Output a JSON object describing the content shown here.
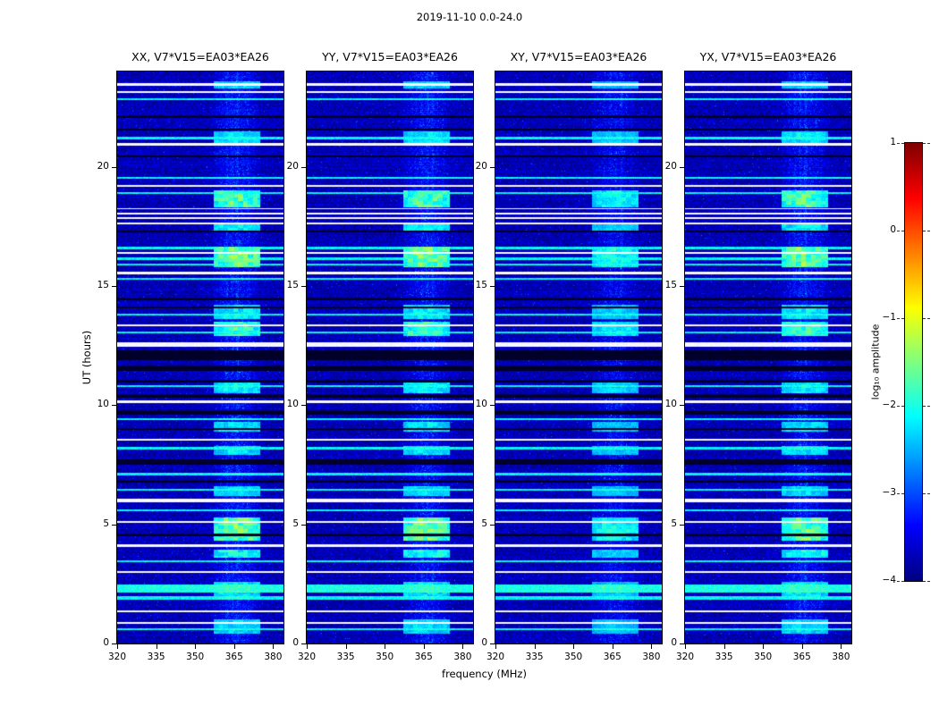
{
  "title": "2019-11-10 0.0-24.0",
  "chart_data": {
    "type": "heatmap",
    "title": "2019-11-10 0.0-24.0",
    "colormap": "jet",
    "panels": [
      {
        "label": "XX, V7*V15=EA03*EA26",
        "pol": "XX",
        "band_gain": 1.0,
        "patch_gain": 1.0
      },
      {
        "label": "YY, V7*V15=EA03*EA26",
        "pol": "YY",
        "band_gain": 1.0,
        "patch_gain": 1.0
      },
      {
        "label": "XY, V7*V15=EA03*EA26",
        "pol": "XY",
        "band_gain": 0.75,
        "patch_gain": 0.6
      },
      {
        "label": "YX, V7*V15=EA03*EA26",
        "pol": "YX",
        "band_gain": 0.9,
        "patch_gain": 0.95
      }
    ],
    "x": {
      "label": "frequency (MHz)",
      "min": 320,
      "max": 384,
      "ticks": [
        320,
        335,
        350,
        365,
        380
      ]
    },
    "y": {
      "label": "UT (hours)",
      "min": 0,
      "max": 24,
      "ticks": [
        0,
        5,
        10,
        15,
        20
      ]
    },
    "colorbar": {
      "label": "log₁₀ amplitude",
      "min": -4,
      "max": 1,
      "ticks": [
        1,
        0,
        -1,
        -2,
        -3,
        -4
      ]
    },
    "rfi_band": {
      "f0": 357,
      "f1": 375,
      "center": 366,
      "width": 8
    },
    "row_features": [
      {
        "ut": 23.45,
        "type": "white",
        "w": 0.1
      },
      {
        "ut": 23.15,
        "type": "white",
        "w": 0.08
      },
      {
        "ut": 22.85,
        "type": "cyan",
        "w": 0.08
      },
      {
        "ut": 22.1,
        "type": "black",
        "w": 0.12
      },
      {
        "ut": 21.55,
        "type": "black",
        "w": 0.08
      },
      {
        "ut": 21.2,
        "type": "cyan",
        "w": 0.12
      },
      {
        "ut": 20.95,
        "type": "white",
        "w": 0.1
      },
      {
        "ut": 20.45,
        "type": "black",
        "w": 0.08
      },
      {
        "ut": 19.55,
        "type": "cyan",
        "w": 0.08
      },
      {
        "ut": 19.2,
        "type": "white",
        "w": 0.1
      },
      {
        "ut": 18.9,
        "type": "cyan",
        "w": 0.1
      },
      {
        "ut": 18.25,
        "type": "white",
        "w": 0.06
      },
      {
        "ut": 18.05,
        "type": "white",
        "w": 0.08
      },
      {
        "ut": 17.85,
        "type": "white",
        "w": 0.08
      },
      {
        "ut": 17.62,
        "type": "white",
        "w": 0.1
      },
      {
        "ut": 17.3,
        "type": "black",
        "w": 0.08
      },
      {
        "ut": 16.6,
        "type": "cyan",
        "w": 0.1
      },
      {
        "ut": 16.38,
        "type": "white",
        "w": 0.06
      },
      {
        "ut": 16.15,
        "type": "cyan",
        "w": 0.12
      },
      {
        "ut": 15.9,
        "type": "cyan",
        "w": 0.1
      },
      {
        "ut": 15.55,
        "type": "white",
        "w": 0.12
      },
      {
        "ut": 15.3,
        "type": "cyan",
        "w": 0.08
      },
      {
        "ut": 14.45,
        "type": "black",
        "w": 0.1
      },
      {
        "ut": 14.1,
        "type": "black",
        "w": 0.08
      },
      {
        "ut": 13.8,
        "type": "cyan",
        "w": 0.1
      },
      {
        "ut": 13.35,
        "type": "white",
        "w": 0.08
      },
      {
        "ut": 13.05,
        "type": "cyan",
        "w": 0.08
      },
      {
        "ut": 12.55,
        "type": "white",
        "w": 0.2
      },
      {
        "ut": 12.1,
        "type": "black",
        "w": 0.4
      },
      {
        "ut": 11.55,
        "type": "black",
        "w": 0.25
      },
      {
        "ut": 11.0,
        "type": "black",
        "w": 0.12
      },
      {
        "ut": 10.8,
        "type": "cyan",
        "w": 0.1
      },
      {
        "ut": 10.4,
        "type": "black",
        "w": 0.15
      },
      {
        "ut": 10.15,
        "type": "white",
        "w": 0.1
      },
      {
        "ut": 9.7,
        "type": "black",
        "w": 0.2
      },
      {
        "ut": 9.4,
        "type": "cyan",
        "w": 0.08
      },
      {
        "ut": 9.0,
        "type": "black",
        "w": 0.1
      },
      {
        "ut": 8.55,
        "type": "white",
        "w": 0.1
      },
      {
        "ut": 8.2,
        "type": "cyan",
        "w": 0.1
      },
      {
        "ut": 7.6,
        "type": "black",
        "w": 0.22
      },
      {
        "ut": 7.1,
        "type": "cyan",
        "w": 0.12
      },
      {
        "ut": 6.8,
        "type": "black",
        "w": 0.12
      },
      {
        "ut": 6.45,
        "type": "cyan",
        "w": 0.08
      },
      {
        "ut": 6.0,
        "type": "white",
        "w": 0.12
      },
      {
        "ut": 5.6,
        "type": "cyan",
        "w": 0.08
      },
      {
        "ut": 5.1,
        "type": "white",
        "w": 0.06
      },
      {
        "ut": 4.55,
        "type": "black",
        "w": 0.1
      },
      {
        "ut": 4.1,
        "type": "white",
        "w": 0.12
      },
      {
        "ut": 3.45,
        "type": "cyan",
        "w": 0.08
      },
      {
        "ut": 3.0,
        "type": "white",
        "w": 0.1
      },
      {
        "ut": 2.3,
        "type": "cyan",
        "w": 0.35,
        "v": -2.0
      },
      {
        "ut": 1.9,
        "type": "cyan",
        "w": 0.15
      },
      {
        "ut": 1.35,
        "type": "white",
        "w": 0.1
      },
      {
        "ut": 0.85,
        "type": "white",
        "w": 0.08
      },
      {
        "ut": 0.6,
        "type": "cyan",
        "w": 0.08
      }
    ],
    "patches": [
      {
        "t0": 23.3,
        "t1": 23.6,
        "i": 0.4
      },
      {
        "t0": 21.0,
        "t1": 21.5,
        "i": 0.5
      },
      {
        "t0": 18.3,
        "t1": 19.0,
        "i": 1.0
      },
      {
        "t0": 17.3,
        "t1": 17.6,
        "i": 0.6
      },
      {
        "t0": 15.8,
        "t1": 16.65,
        "i": 1.15
      },
      {
        "t0": 13.6,
        "t1": 14.2,
        "i": 0.55
      },
      {
        "t0": 12.9,
        "t1": 13.5,
        "i": 0.9
      },
      {
        "t0": 10.5,
        "t1": 11.0,
        "i": 0.6
      },
      {
        "t0": 8.9,
        "t1": 9.3,
        "i": 0.5
      },
      {
        "t0": 7.9,
        "t1": 8.3,
        "i": 0.5
      },
      {
        "t0": 6.2,
        "t1": 6.6,
        "i": 0.45
      },
      {
        "t0": 4.3,
        "t1": 5.3,
        "i": 1.1
      },
      {
        "t0": 3.6,
        "t1": 3.95,
        "i": 0.7
      },
      {
        "t0": 2.0,
        "t1": 2.6,
        "i": 0.5
      },
      {
        "t0": 0.4,
        "t1": 1.0,
        "i": 0.45
      }
    ]
  }
}
